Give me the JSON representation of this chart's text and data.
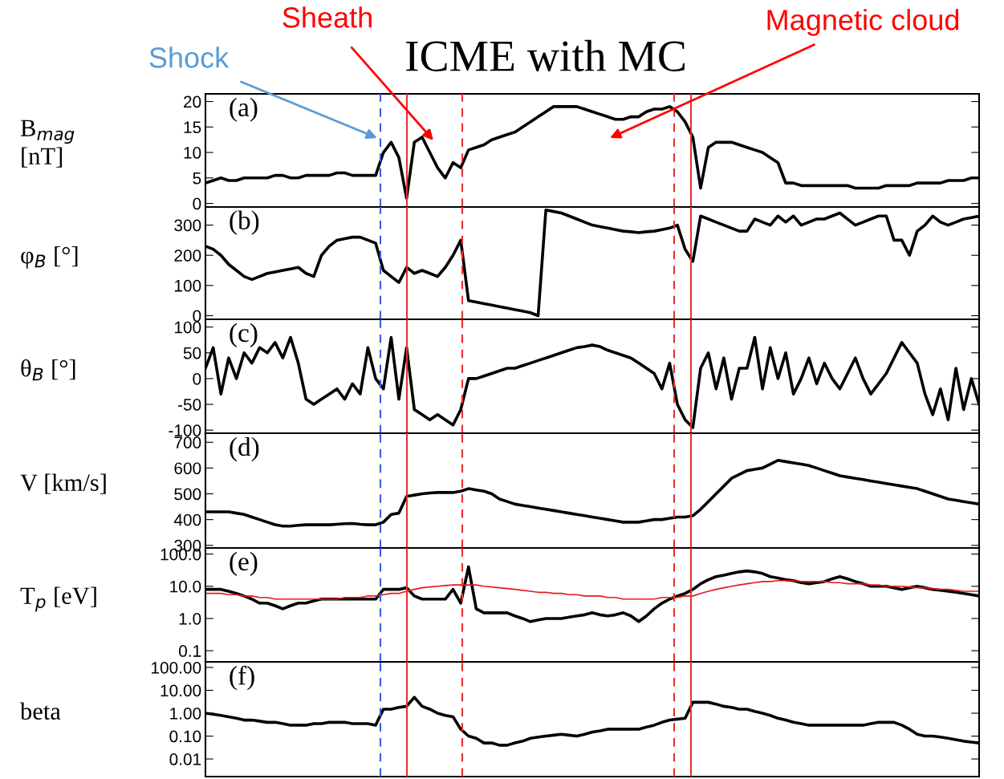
{
  "chart_data": [
    {
      "type": "line",
      "title": "ICME with MC",
      "ylabel": "B$_{mag}$\n[nT]",
      "tick_labels": "y",
      "ylim": [
        -0.7,
        21.5
      ],
      "yticks": [
        0,
        5,
        10,
        15,
        20
      ],
      "categories": [
        null,
        null,
        null,
        null,
        null,
        null,
        null,
        null,
        null,
        null,
        null,
        null,
        null,
        null,
        null,
        null,
        null,
        null,
        null,
        null,
        null,
        null,
        null,
        null,
        null,
        null,
        null,
        null,
        null,
        null,
        null,
        null,
        null,
        null,
        null,
        null,
        null,
        null,
        null,
        null,
        null,
        null,
        null,
        null,
        null,
        null,
        null,
        null,
        null,
        null,
        null,
        null,
        null,
        null,
        null,
        null,
        null,
        null,
        null,
        null,
        null,
        null,
        null,
        null,
        null,
        null,
        null,
        null,
        null,
        null,
        null,
        null,
        null,
        null,
        null,
        null,
        null,
        null,
        null,
        null,
        null,
        null,
        null,
        null,
        null,
        null,
        null,
        null,
        null,
        null,
        null,
        null,
        null,
        null,
        null,
        null,
        null,
        null,
        null,
        null,
        null
      ],
      "annotations": [
        "(a)",
        "Shock",
        "Sheath",
        "Magnetic cloud"
      ],
      "series": [
        {
          "color": "#000000",
          "values": [
            4,
            4.5,
            5,
            4.5,
            4.5,
            5,
            5,
            5,
            5,
            5.5,
            5.5,
            5,
            5,
            5.5,
            5.5,
            5.5,
            5.5,
            6,
            6,
            5.5,
            5.5,
            5.5,
            5.5,
            10,
            12,
            9,
            1,
            12,
            13,
            10,
            7,
            5,
            8,
            7,
            10.5,
            11,
            11.5,
            12.5,
            13,
            13.5,
            14,
            15,
            16,
            17,
            18,
            19,
            19,
            19,
            19,
            18.5,
            18,
            17.5,
            17,
            16.5,
            16.5,
            17,
            17,
            18,
            18.5,
            18.5,
            19,
            18,
            16,
            13,
            3,
            11,
            12,
            12,
            12,
            11.5,
            11,
            10.5,
            10,
            9,
            8,
            4,
            4,
            3.5,
            3.5,
            3.5,
            3.5,
            3.5,
            3.5,
            3.5,
            3,
            3,
            3,
            3,
            3.5,
            3.5,
            3.5,
            3.5,
            4,
            4,
            4,
            4,
            4.5,
            4.5,
            4.5,
            5,
            5
          ]
        }
      ]
    },
    {
      "type": "line",
      "ylabel": "φ$_{B}$ [°]",
      "tick_labels": "y",
      "ylim": [
        -12,
        360
      ],
      "yticks": [
        0,
        100,
        200,
        300
      ],
      "annotations": [
        "(b)"
      ],
      "categories": [
        null,
        null,
        null,
        null,
        null,
        null,
        null,
        null,
        null,
        null,
        null,
        null,
        null,
        null,
        null,
        null,
        null,
        null,
        null,
        null,
        null,
        null,
        null,
        null,
        null,
        null,
        null,
        null,
        null,
        null,
        null,
        null,
        null,
        null,
        null,
        null,
        null,
        null,
        null,
        null,
        null,
        null,
        null,
        null,
        null,
        null,
        null,
        null,
        null,
        null,
        null,
        null,
        null,
        null,
        null,
        null,
        null,
        null,
        null,
        null,
        null,
        null,
        null,
        null,
        null,
        null,
        null,
        null,
        null,
        null,
        null,
        null,
        null,
        null,
        null,
        null,
        null,
        null,
        null,
        null,
        null,
        null,
        null,
        null,
        null,
        null,
        null,
        null,
        null,
        null,
        null,
        null,
        null,
        null,
        null,
        null,
        null,
        null,
        null,
        null,
        null
      ],
      "series": [
        {
          "color": "#000000",
          "values": [
            230,
            220,
            200,
            170,
            150,
            130,
            120,
            130,
            140,
            145,
            150,
            155,
            160,
            140,
            130,
            200,
            230,
            250,
            255,
            260,
            260,
            250,
            240,
            150,
            130,
            110,
            160,
            140,
            150,
            140,
            130,
            160,
            200,
            250,
            50,
            45,
            40,
            35,
            30,
            25,
            20,
            15,
            10,
            0,
            350,
            345,
            340,
            330,
            320,
            310,
            300,
            295,
            290,
            285,
            280,
            278,
            275,
            278,
            280,
            285,
            290,
            300,
            220,
            180,
            330,
            320,
            310,
            300,
            290,
            280,
            280,
            320,
            310,
            300,
            330,
            310,
            330,
            300,
            310,
            320,
            320,
            330,
            340,
            320,
            300,
            310,
            320,
            330,
            330,
            250,
            250,
            200,
            280,
            300,
            330,
            310,
            300,
            310,
            320,
            325,
            330
          ]
        }
      ]
    },
    {
      "type": "line",
      "ylabel": "θ$_{B}$ [°]",
      "tick_labels": "y",
      "ylim": [
        -106,
        115
      ],
      "yticks": [
        -100,
        -50,
        0,
        50,
        100
      ],
      "annotations": [
        "(c)"
      ],
      "categories": [
        null,
        null,
        null,
        null,
        null,
        null,
        null,
        null,
        null,
        null,
        null,
        null,
        null,
        null,
        null,
        null,
        null,
        null,
        null,
        null,
        null,
        null,
        null,
        null,
        null,
        null,
        null,
        null,
        null,
        null,
        null,
        null,
        null,
        null,
        null,
        null,
        null,
        null,
        null,
        null,
        null,
        null,
        null,
        null,
        null,
        null,
        null,
        null,
        null,
        null,
        null,
        null,
        null,
        null,
        null,
        null,
        null,
        null,
        null,
        null,
        null,
        null,
        null,
        null,
        null,
        null,
        null,
        null,
        null,
        null,
        null,
        null,
        null,
        null,
        null,
        null,
        null,
        null,
        null,
        null,
        null,
        null,
        null,
        null,
        null,
        null,
        null,
        null,
        null,
        null,
        null,
        null,
        null,
        null,
        null,
        null,
        null,
        null,
        null,
        null,
        null
      ],
      "series": [
        {
          "color": "#000000",
          "values": [
            20,
            60,
            -30,
            40,
            0,
            50,
            30,
            60,
            50,
            70,
            40,
            80,
            30,
            -40,
            -50,
            -40,
            -30,
            -20,
            -40,
            -10,
            -30,
            60,
            0,
            -20,
            80,
            -40,
            60,
            -60,
            -70,
            -80,
            -70,
            -80,
            -90,
            -60,
            0,
            0,
            5,
            10,
            15,
            20,
            20,
            25,
            30,
            35,
            40,
            45,
            50,
            55,
            60,
            62,
            65,
            62,
            55,
            50,
            45,
            40,
            30,
            20,
            10,
            -20,
            30,
            -50,
            -80,
            -95,
            20,
            50,
            -20,
            40,
            -40,
            20,
            20,
            80,
            -20,
            60,
            0,
            50,
            -30,
            0,
            40,
            -10,
            30,
            0,
            -20,
            10,
            40,
            0,
            -30,
            -10,
            10,
            40,
            70,
            50,
            30,
            -30,
            -70,
            -20,
            -80,
            20,
            -60,
            0,
            -50
          ]
        }
      ]
    },
    {
      "type": "line",
      "ylabel": "V [km/s]",
      "tick_labels": "y",
      "ylim": [
        290,
        735
      ],
      "yticks": [
        300,
        400,
        500,
        600,
        700
      ],
      "annotations": [
        "(d)"
      ],
      "categories": [
        null,
        null,
        null,
        null,
        null,
        null,
        null,
        null,
        null,
        null,
        null,
        null,
        null,
        null,
        null,
        null,
        null,
        null,
        null,
        null,
        null,
        null,
        null,
        null,
        null,
        null,
        null,
        null,
        null,
        null,
        null,
        null,
        null,
        null,
        null,
        null,
        null,
        null,
        null,
        null,
        null,
        null,
        null,
        null,
        null,
        null,
        null,
        null,
        null,
        null,
        null,
        null,
        null,
        null,
        null,
        null,
        null,
        null,
        null,
        null,
        null,
        null,
        null,
        null,
        null,
        null,
        null,
        null,
        null,
        null,
        null,
        null,
        null,
        null,
        null,
        null,
        null,
        null,
        null,
        null,
        null,
        null,
        null,
        null,
        null,
        null,
        null,
        null,
        null,
        null,
        null,
        null,
        null,
        null,
        null,
        null,
        null,
        null,
        null,
        null,
        null
      ],
      "series": [
        {
          "color": "#000000",
          "values": [
            430,
            430,
            430,
            430,
            425,
            420,
            410,
            400,
            390,
            380,
            375,
            375,
            378,
            380,
            380,
            380,
            380,
            382,
            384,
            385,
            382,
            380,
            380,
            390,
            420,
            425,
            490,
            495,
            500,
            503,
            505,
            505,
            505,
            510,
            520,
            515,
            510,
            500,
            480,
            470,
            460,
            455,
            450,
            445,
            440,
            435,
            430,
            425,
            420,
            415,
            410,
            405,
            400,
            395,
            390,
            390,
            390,
            395,
            400,
            400,
            405,
            410,
            410,
            415,
            440,
            470,
            500,
            530,
            560,
            575,
            590,
            595,
            600,
            615,
            630,
            625,
            620,
            615,
            610,
            600,
            590,
            580,
            570,
            565,
            560,
            555,
            550,
            545,
            540,
            535,
            530,
            525,
            520,
            510,
            500,
            490,
            480,
            475,
            470,
            465,
            460
          ]
        }
      ]
    },
    {
      "type": "line",
      "ylabel": "T$_{p}$ [eV]",
      "tick_labels": "y",
      "log": "y",
      "ylim": [
        0.045,
        155
      ],
      "yticks": [
        {
          "value": 0.1,
          "label": "0.1"
        },
        {
          "value": 1,
          "label": "1.0"
        },
        {
          "value": 10,
          "label": "10.0"
        },
        {
          "value": 100,
          "label": "100.0"
        }
      ],
      "annotations": [
        "(e)"
      ],
      "categories": [
        null,
        null,
        null,
        null,
        null,
        null,
        null,
        null,
        null,
        null,
        null,
        null,
        null,
        null,
        null,
        null,
        null,
        null,
        null,
        null,
        null,
        null,
        null,
        null,
        null,
        null,
        null,
        null,
        null,
        null,
        null,
        null,
        null,
        null,
        null,
        null,
        null,
        null,
        null,
        null,
        null,
        null,
        null,
        null,
        null,
        null,
        null,
        null,
        null,
        null,
        null,
        null,
        null,
        null,
        null,
        null,
        null,
        null,
        null,
        null,
        null,
        null,
        null,
        null,
        null,
        null,
        null,
        null,
        null,
        null,
        null,
        null,
        null,
        null,
        null,
        null,
        null,
        null,
        null,
        null,
        null,
        null,
        null,
        null,
        null,
        null,
        null,
        null,
        null,
        null,
        null,
        null,
        null,
        null,
        null,
        null,
        null,
        null,
        null,
        null,
        null
      ],
      "series": [
        {
          "color": "#000000",
          "values": [
            8,
            8,
            8,
            7,
            6,
            5,
            4,
            3,
            3,
            2.5,
            2,
            2.5,
            3,
            3,
            3.5,
            4,
            4,
            4,
            4,
            4,
            4,
            4,
            4,
            8,
            8,
            8,
            9,
            5,
            4,
            4,
            4,
            4,
            8,
            3,
            40,
            2,
            1.5,
            1.5,
            1.5,
            1.5,
            1.2,
            1,
            0.8,
            0.9,
            1,
            1,
            1,
            1.1,
            1.2,
            1.3,
            1.5,
            1.3,
            1.2,
            1.3,
            1.5,
            1.2,
            0.8,
            1.2,
            2,
            3,
            4,
            5,
            6,
            8,
            12,
            16,
            20,
            22,
            25,
            28,
            30,
            28,
            25,
            20,
            18,
            16,
            15,
            13,
            12,
            13,
            14,
            17,
            20,
            17,
            14,
            12,
            10,
            10,
            10,
            9,
            8,
            9,
            10,
            9,
            8,
            7.5,
            7,
            6.5,
            6,
            5.5,
            5
          ]
        },
        {
          "color": "#e41a1c",
          "values": [
            6,
            6,
            6,
            5.5,
            5.5,
            5,
            5,
            4.5,
            4.5,
            4,
            4,
            4,
            4,
            4,
            4,
            4,
            4,
            4,
            4.5,
            4.5,
            4.5,
            5,
            5,
            5.5,
            6,
            6,
            7,
            8,
            9,
            9.5,
            10,
            10.5,
            11,
            11,
            11,
            11,
            10,
            9.5,
            9,
            8.5,
            8,
            7.5,
            7,
            6.5,
            6.5,
            6,
            6,
            5.5,
            5.5,
            5,
            5,
            5,
            4.5,
            4.5,
            4,
            4,
            4,
            4,
            4,
            4.5,
            4.5,
            4.5,
            5,
            5,
            6,
            7,
            8,
            9,
            10,
            11,
            12,
            13,
            14,
            14,
            15,
            15,
            15,
            14,
            14,
            14,
            14,
            13,
            13,
            12,
            12,
            12,
            11,
            11,
            10,
            10,
            10,
            9.5,
            9,
            9,
            8.5,
            8,
            8,
            7.5,
            7,
            7,
            7
          ]
        }
      ]
    },
    {
      "type": "line",
      "ylabel": "beta",
      "tick_labels": "y",
      "log": "y",
      "ylim": [
        0.0017,
        175
      ],
      "yticks": [
        {
          "value": 0.01,
          "label": "0.01"
        },
        {
          "value": 0.1,
          "label": "0.10"
        },
        {
          "value": 1,
          "label": "1.00"
        },
        {
          "value": 10,
          "label": "10.00"
        },
        {
          "value": 100,
          "label": "100.00"
        }
      ],
      "annotations": [
        "(f)"
      ],
      "categories": [
        null,
        null,
        null,
        null,
        null,
        null,
        null,
        null,
        null,
        null,
        null,
        null,
        null,
        null,
        null,
        null,
        null,
        null,
        null,
        null,
        null,
        null,
        null,
        null,
        null,
        null,
        null,
        null,
        null,
        null,
        null,
        null,
        null,
        null,
        null,
        null,
        null,
        null,
        null,
        null,
        null,
        null,
        null,
        null,
        null,
        null,
        null,
        null,
        null,
        null,
        null,
        null,
        null,
        null,
        null,
        null,
        null,
        null,
        null,
        null,
        null,
        null,
        null,
        null,
        null,
        null,
        null,
        null,
        null,
        null,
        null,
        null,
        null,
        null,
        null,
        null,
        null,
        null,
        null,
        null,
        null,
        null,
        null,
        null,
        null,
        null,
        null,
        null,
        null,
        null,
        null,
        null,
        null,
        null,
        null,
        null,
        null,
        null,
        null,
        null,
        null
      ],
      "series": [
        {
          "color": "#000000",
          "values": [
            1,
            0.9,
            0.8,
            0.7,
            0.6,
            0.5,
            0.5,
            0.45,
            0.4,
            0.4,
            0.35,
            0.3,
            0.3,
            0.3,
            0.35,
            0.35,
            0.4,
            0.4,
            0.4,
            0.35,
            0.35,
            0.35,
            0.3,
            1.5,
            1.5,
            1.8,
            2,
            5,
            2,
            1.5,
            1,
            0.8,
            0.7,
            0.2,
            0.1,
            0.08,
            0.05,
            0.05,
            0.04,
            0.04,
            0.05,
            0.06,
            0.08,
            0.09,
            0.1,
            0.11,
            0.12,
            0.11,
            0.1,
            0.12,
            0.15,
            0.17,
            0.2,
            0.2,
            0.2,
            0.2,
            0.2,
            0.25,
            0.3,
            0.4,
            0.5,
            0.55,
            0.6,
            3,
            3,
            3,
            2.5,
            2,
            1.8,
            1.5,
            1.5,
            1.2,
            1,
            0.8,
            0.6,
            0.5,
            0.4,
            0.35,
            0.3,
            0.3,
            0.3,
            0.3,
            0.3,
            0.3,
            0.3,
            0.3,
            0.35,
            0.4,
            0.4,
            0.4,
            0.3,
            0.2,
            0.12,
            0.1,
            0.1,
            0.09,
            0.08,
            0.07,
            0.06,
            0.055,
            0.05
          ]
        }
      ]
    }
  ]
}
